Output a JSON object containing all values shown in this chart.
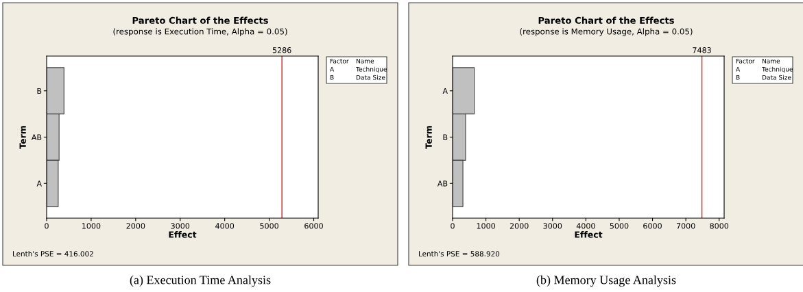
{
  "chart_data": [
    {
      "type": "bar",
      "orientation": "horizontal",
      "title": "Pareto Chart of the Effects",
      "subtitle": "(response is Execution Time, Alpha = 0.05)",
      "xlabel": "Effect",
      "ylabel": "Term",
      "categories": [
        "B",
        "AB",
        "A"
      ],
      "values": [
        390,
        280,
        260
      ],
      "color": "#c0c0c0",
      "xlim": [
        0,
        6100
      ],
      "xticks": [
        0,
        1000,
        2000,
        3000,
        4000,
        5000,
        6000
      ],
      "ref_lines": [
        {
          "axis": "x",
          "value": 5286,
          "label": "5286",
          "color": "#e41a1c"
        }
      ],
      "annotations": [
        "Lenth's PSE = 416.002",
        "Factor",
        "Name",
        "A",
        "Technique",
        "B",
        "Data Size",
        "(a) Execution Time Analysis"
      ]
    },
    {
      "type": "bar",
      "orientation": "horizontal",
      "title": "Pareto Chart of the Effects",
      "subtitle": "(response is Memory Usage, Alpha = 0.05)",
      "xlabel": "Effect",
      "ylabel": "Term",
      "categories": [
        "A",
        "B",
        "AB"
      ],
      "values": [
        650,
        390,
        310
      ],
      "color": "#c0c0c0",
      "xlim": [
        0,
        8150
      ],
      "xticks": [
        0,
        1000,
        2000,
        3000,
        4000,
        5000,
        6000,
        7000,
        8000
      ],
      "ref_lines": [
        {
          "axis": "x",
          "value": 7483,
          "label": "7483",
          "color": "#e41a1c"
        }
      ],
      "annotations": [
        "Lenth's PSE = 588.920",
        "Factor",
        "Name",
        "A",
        "Technique",
        "B",
        "Data Size",
        "(b) Memory Usage Analysis"
      ]
    }
  ]
}
